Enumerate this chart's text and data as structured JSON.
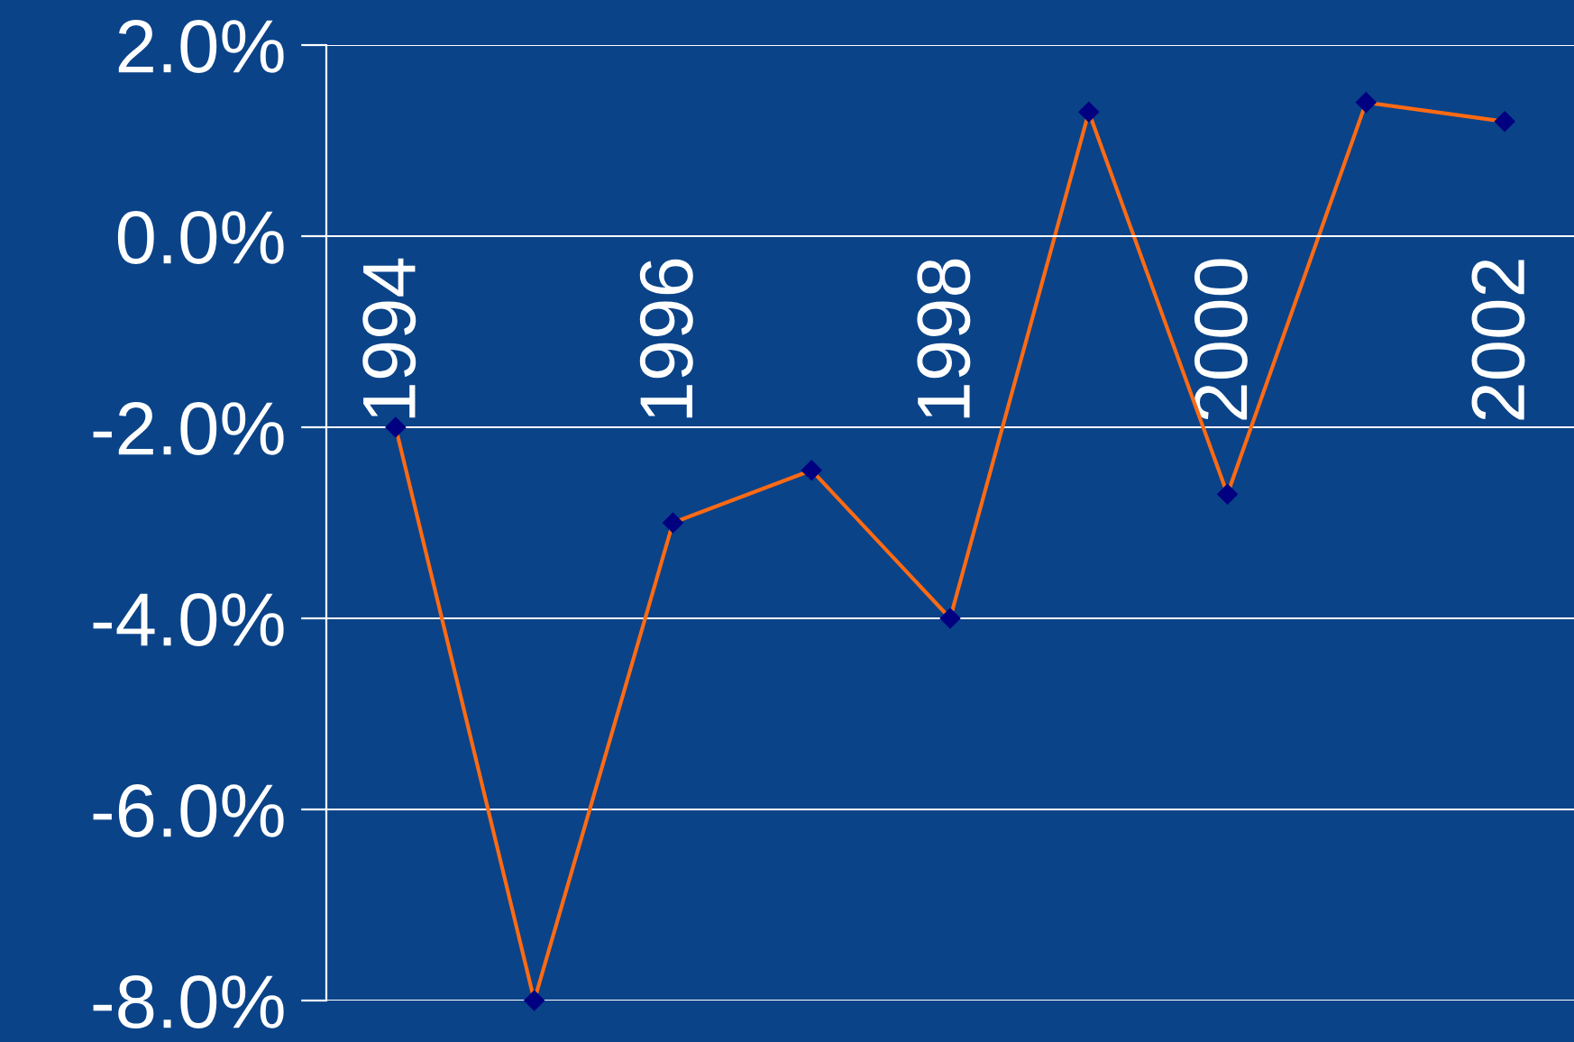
{
  "chart_data": {
    "type": "line",
    "categories": [
      "1994",
      null,
      "1996",
      null,
      "1998",
      null,
      "2000",
      null,
      "2002"
    ],
    "series": [
      {
        "color": "#ff6a13",
        "values": [
          -2.0,
          -8.0,
          -3.0,
          -2.45,
          -4.0,
          1.3,
          -2.7,
          1.4,
          1.2
        ]
      }
    ],
    "marker": "diamond",
    "ylim": [
      -8,
      2
    ],
    "yticks": [
      {
        "value": -8,
        "label": "-8.0%"
      },
      {
        "value": -6,
        "label": "-6.0%"
      },
      {
        "value": -4,
        "label": "-4.0%"
      },
      {
        "value": -2,
        "label": "-2.0%"
      },
      {
        "value": 0,
        "label": "0.0%"
      },
      {
        "value": 2,
        "label": "2.0%"
      }
    ],
    "grid": "y"
  }
}
